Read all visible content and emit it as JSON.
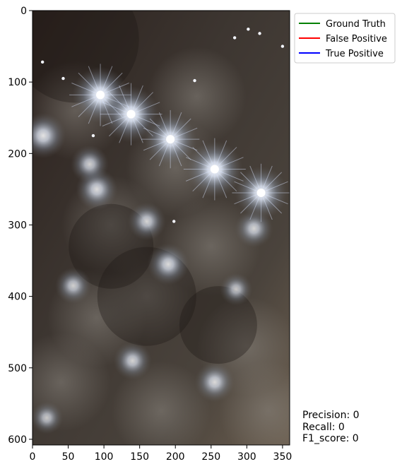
{
  "chart_data": {
    "type": "image",
    "x_ticks": [
      0,
      50,
      100,
      150,
      200,
      250,
      300,
      350
    ],
    "y_ticks": [
      0,
      100,
      200,
      300,
      400,
      500,
      600
    ],
    "xlim": [
      0,
      359
    ],
    "ylim": [
      607,
      0
    ],
    "legend": {
      "placement": "outside-top-right",
      "entries": [
        {
          "label": "Ground Truth",
          "color": "#008000"
        },
        {
          "label": "False Positive",
          "color": "#ff0000"
        },
        {
          "label": "True Positive",
          "color": "#0000ff"
        }
      ]
    },
    "metrics": {
      "precision": "Precision: 0",
      "recall": "Recall: 0",
      "f1": "F1_score: 0"
    },
    "image": {
      "description_colors": {
        "dark": "#2a2320",
        "mid": "#5a534c",
        "glow": "#eaf2ff",
        "warm": "#9a8a72"
      },
      "bright_spots": [
        {
          "x": 95,
          "y": 118,
          "strength": 1.0
        },
        {
          "x": 138,
          "y": 145,
          "strength": 1.0
        },
        {
          "x": 193,
          "y": 180,
          "strength": 0.9
        },
        {
          "x": 255,
          "y": 222,
          "strength": 1.0
        },
        {
          "x": 320,
          "y": 255,
          "strength": 0.9
        },
        {
          "x": 15,
          "y": 175,
          "strength": 0.7
        },
        {
          "x": 90,
          "y": 250,
          "strength": 0.6
        },
        {
          "x": 190,
          "y": 355,
          "strength": 0.6
        },
        {
          "x": 160,
          "y": 295,
          "strength": 0.5
        },
        {
          "x": 310,
          "y": 305,
          "strength": 0.5
        },
        {
          "x": 57,
          "y": 385,
          "strength": 0.45
        },
        {
          "x": 140,
          "y": 490,
          "strength": 0.5
        },
        {
          "x": 255,
          "y": 520,
          "strength": 0.55
        },
        {
          "x": 20,
          "y": 570,
          "strength": 0.35
        },
        {
          "x": 285,
          "y": 390,
          "strength": 0.35
        },
        {
          "x": 80,
          "y": 215,
          "strength": 0.5
        }
      ],
      "small_lights": [
        {
          "x": 302,
          "y": 26
        },
        {
          "x": 318,
          "y": 32
        },
        {
          "x": 283,
          "y": 38
        },
        {
          "x": 350,
          "y": 50
        },
        {
          "x": 14,
          "y": 72
        },
        {
          "x": 43,
          "y": 95
        },
        {
          "x": 227,
          "y": 98
        },
        {
          "x": 198,
          "y": 295
        },
        {
          "x": 85,
          "y": 175
        }
      ]
    }
  }
}
